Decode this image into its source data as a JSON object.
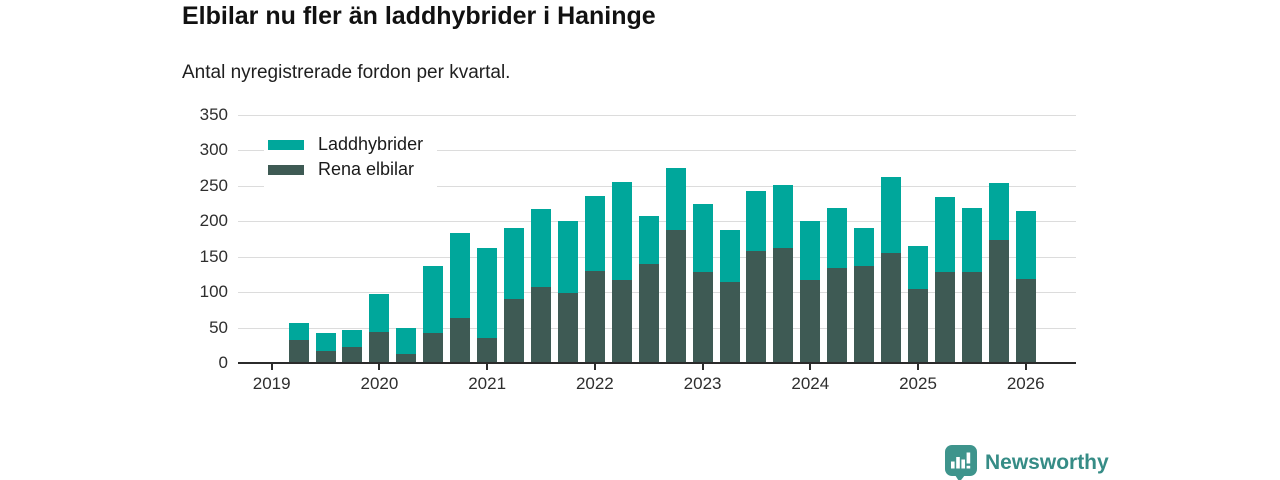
{
  "header": {
    "title": "Elbilar nu fler än laddhybrider i Haninge",
    "subtitle": "Antal nyregistrerade fordon per kvartal."
  },
  "legend": {
    "items": [
      {
        "label": "Laddhybrider",
        "color": "#00a79b"
      },
      {
        "label": "Rena elbilar",
        "color": "#3e5a54"
      }
    ]
  },
  "footer": {
    "brand": "Newsworthy"
  },
  "colors": {
    "laddhybrider": "#00a79b",
    "rena_elbilar": "#3e5a54",
    "gridline": "#dcdcdc",
    "axis": "#2b2b2b",
    "brand_teal": "#3e948c"
  },
  "chart_data": {
    "type": "bar",
    "stacked": true,
    "title": "Elbilar nu fler än laddhybrider i Haninge",
    "subtitle": "Antal nyregistrerade fordon per kvartal.",
    "xlabel": "",
    "ylabel": "",
    "ylim": [
      0,
      350
    ],
    "yticks": [
      0,
      50,
      100,
      150,
      200,
      250,
      300,
      350
    ],
    "grid": true,
    "legend_position": "top-left-inside",
    "categories": [
      "2019 K1",
      "2019 K2",
      "2019 K3",
      "2019 K4",
      "2020 K1",
      "2020 K2",
      "2020 K3",
      "2020 K4",
      "2021 K1",
      "2021 K2",
      "2021 K3",
      "2021 K4",
      "2022 K1",
      "2022 K2",
      "2022 K3",
      "2022 K4",
      "2023 K1",
      "2023 K2",
      "2023 K3",
      "2023 K4",
      "2024 K1",
      "2024 K2",
      "2024 K3",
      "2024 K4",
      "2025 K1",
      "2025 K2",
      "2025 K3",
      "2025 K4",
      "2026 K1"
    ],
    "series": [
      {
        "name": "Rena elbilar",
        "color": "#3e5a54",
        "stack_order": "bottom",
        "values": [
          0,
          33,
          17,
          22,
          44,
          12,
          42,
          63,
          35,
          90,
          107,
          99,
          130,
          117,
          140,
          187,
          129,
          115,
          158,
          162,
          117,
          134,
          137,
          155,
          105,
          128,
          128,
          173,
          119
        ]
      },
      {
        "name": "Laddhybrider",
        "color": "#00a79b",
        "stack_order": "top",
        "values": [
          0,
          24,
          26,
          25,
          53,
          37,
          95,
          120,
          127,
          100,
          110,
          101,
          106,
          138,
          67,
          88,
          95,
          73,
          85,
          89,
          83,
          85,
          53,
          108,
          60,
          106,
          91,
          81,
          95
        ]
      }
    ],
    "x_year_ticks": [
      {
        "label": "2019",
        "index": 0
      },
      {
        "label": "2020",
        "index": 4
      },
      {
        "label": "2021",
        "index": 8
      },
      {
        "label": "2022",
        "index": 12
      },
      {
        "label": "2023",
        "index": 16
      },
      {
        "label": "2024",
        "index": 20
      },
      {
        "label": "2025",
        "index": 24
      },
      {
        "label": "2026",
        "index": 28
      }
    ]
  }
}
